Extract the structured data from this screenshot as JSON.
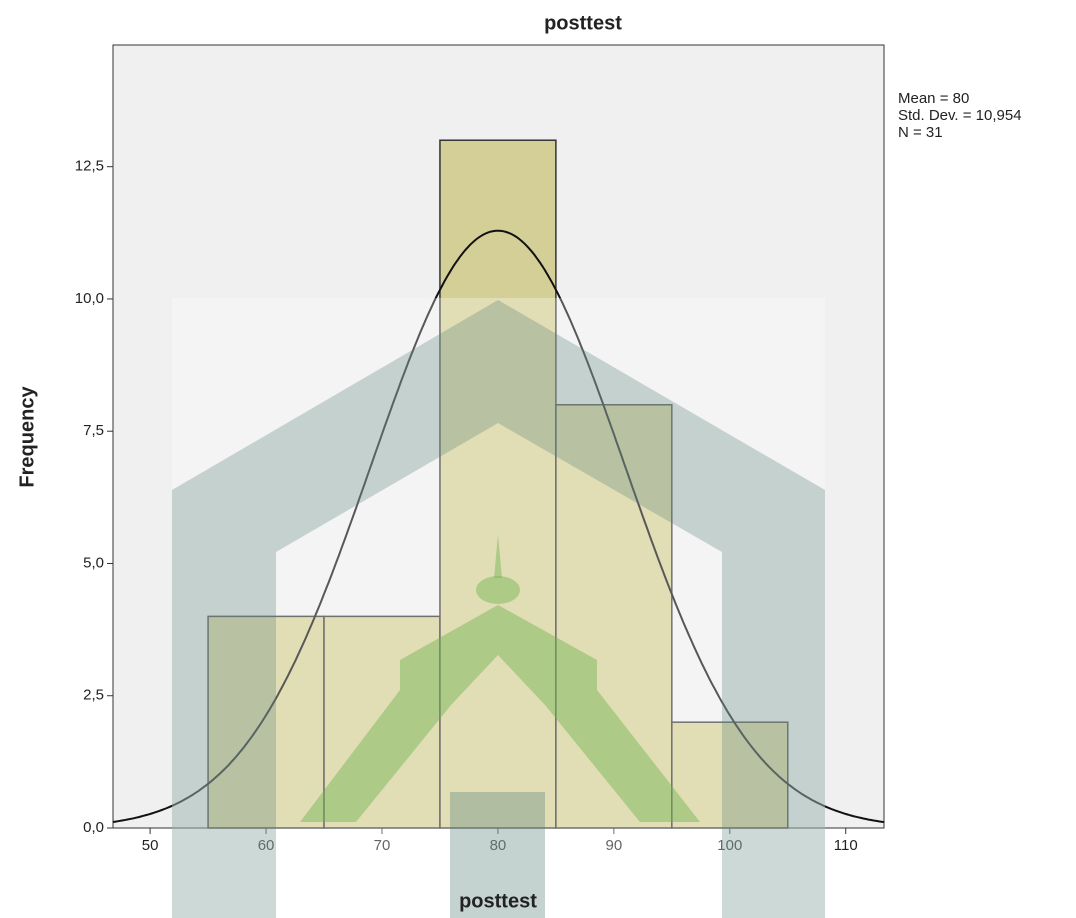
{
  "chart_data": {
    "type": "histogram",
    "title": "posttest",
    "x_label": "posttest",
    "y_label": "Frequency",
    "bins": [
      55,
      65,
      75,
      85,
      95,
      105
    ],
    "values": [
      4,
      4,
      13,
      8,
      2
    ],
    "color": "#d4cf96",
    "xlim": [
      46.8,
      113.3
    ],
    "ylim": [
      0,
      14.8
    ],
    "xticks": [
      50,
      60,
      70,
      80,
      90,
      100,
      110
    ],
    "yticks": [
      {
        "value": 0,
        "label": "0,0"
      },
      {
        "value": 2.5,
        "label": "2,5"
      },
      {
        "value": 5,
        "label": "5,0"
      },
      {
        "value": 7.5,
        "label": "7,5"
      },
      {
        "value": 10,
        "label": "10,0"
      },
      {
        "value": 12.5,
        "label": "12,5"
      }
    ],
    "stats": [
      {
        "label": "Mean = 80",
        "value": 80
      },
      {
        "label": "Std. Dev. = 10,954",
        "value": 10.954
      },
      {
        "label": "N = 31",
        "value": 31
      }
    ]
  }
}
